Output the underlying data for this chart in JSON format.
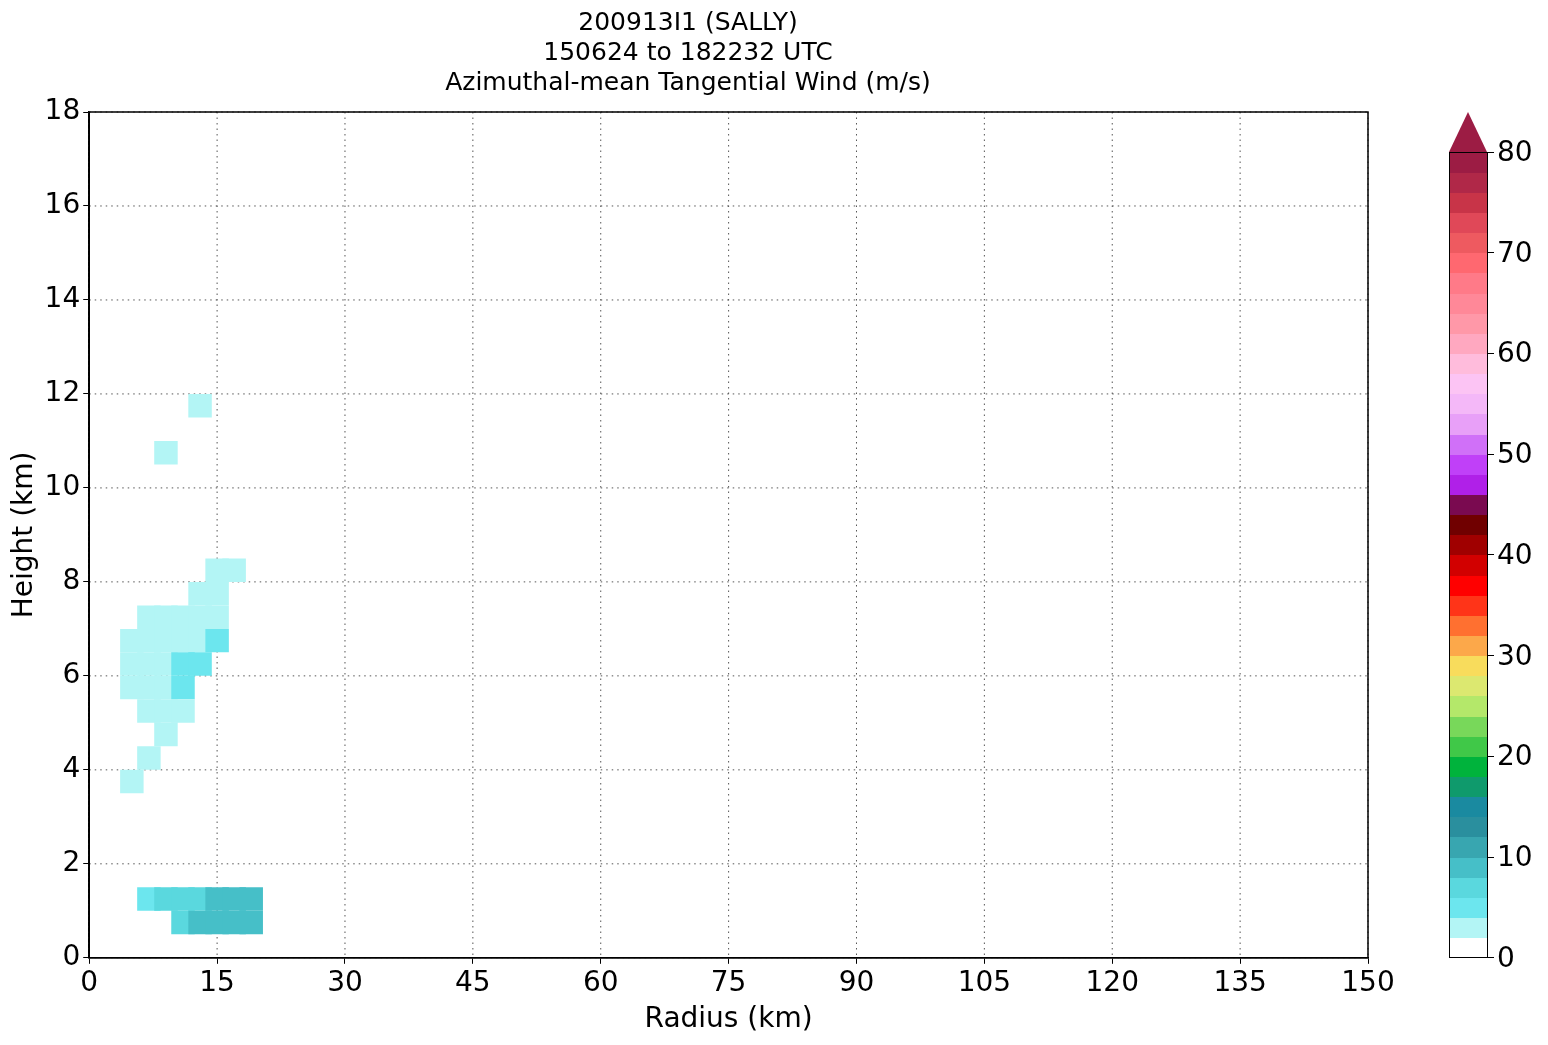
{
  "chart_data": {
    "type": "scatter",
    "title": "200913I1 (SALLY)\n150624 to 182232 UTC\nAzimuthal-mean Tangential Wind (m/s)",
    "xlabel": "Radius (km)",
    "ylabel": "Height (km)",
    "xlim": [
      0,
      150
    ],
    "xticks": [
      0,
      15,
      30,
      45,
      60,
      75,
      90,
      105,
      120,
      135,
      150
    ],
    "ylim": [
      0,
      18
    ],
    "yticks": [
      0,
      2,
      4,
      6,
      8,
      10,
      12,
      14,
      16,
      18
    ],
    "grid": true,
    "marker": "square",
    "clim": [
      0,
      80
    ],
    "cticks": [
      0,
      10,
      20,
      30,
      40,
      50,
      60,
      70,
      80
    ],
    "x": [
      13,
      9,
      15,
      17,
      13,
      15,
      7,
      9,
      11,
      13,
      15,
      5,
      7,
      9,
      11,
      13,
      15,
      5,
      7,
      9,
      11,
      13,
      5,
      7,
      9,
      11,
      7,
      9,
      11,
      9,
      7,
      5,
      7,
      9,
      11,
      13,
      15,
      17,
      19,
      11,
      13,
      15,
      17,
      19
    ],
    "values": [
      11.75,
      10.75,
      8.25,
      8.25,
      7.75,
      7.75,
      7.25,
      7.25,
      7.25,
      7.25,
      7.25,
      6.75,
      6.75,
      6.75,
      6.75,
      6.75,
      6.75,
      6.25,
      6.25,
      6.25,
      6.25,
      6.25,
      5.75,
      5.75,
      5.75,
      5.75,
      5.25,
      5.25,
      5.25,
      4.75,
      4.25,
      3.75,
      1.25,
      1.25,
      1.25,
      1.25,
      1.25,
      1.25,
      1.25,
      0.75,
      0.75,
      0.75,
      0.75,
      0.75
    ],
    "cvalues": [
      3,
      3,
      3,
      3,
      3,
      3,
      3,
      3,
      3,
      3,
      3,
      3,
      3,
      3,
      3,
      3,
      5,
      3,
      3,
      3,
      5,
      5,
      3,
      3,
      3,
      5,
      3,
      3,
      3,
      3,
      3,
      3,
      5,
      7,
      7,
      7,
      9,
      9,
      9,
      7,
      9,
      9,
      9,
      9
    ]
  }
}
